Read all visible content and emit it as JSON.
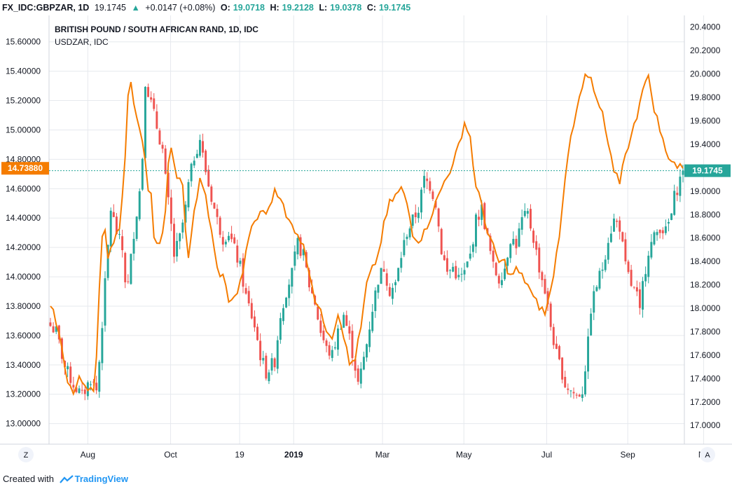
{
  "header": {
    "symbol": "FX_IDC:GBPZAR, 1D",
    "last": "19.1745",
    "change": "+0.0147 (+0.08%)",
    "o_label": "O:",
    "o": "19.0718",
    "h_label": "H:",
    "h": "19.2128",
    "l_label": "L:",
    "l": "19.0378",
    "c_label": "C:",
    "c": "19.1745"
  },
  "footer": {
    "created_with": "Created with",
    "brand": "TradingView"
  },
  "corner_left": "Z",
  "corner_right": "A",
  "colors": {
    "up": "#26a69a",
    "down": "#ef5350",
    "overlay": "#f57c00",
    "grid": "#e6e9ee",
    "price_badge_left": "#f57c00",
    "price_badge_right": "#26a69a"
  },
  "chart_data": {
    "type": "candlestick",
    "title": "BRITISH POUND / SOUTH AFRICAN RAND, 1D, IDC",
    "overlay_label": "USDZAR, IDC",
    "left_axis": {
      "ticks": [
        "15.60000",
        "15.40000",
        "15.20000",
        "15.00000",
        "14.80000",
        "14.60000",
        "14.40000",
        "14.20000",
        "14.00000",
        "13.80000",
        "13.60000",
        "13.40000",
        "13.20000",
        "13.00000"
      ],
      "range": [
        12.86,
        15.78
      ],
      "current_label": "14.73880",
      "current_value": 14.7388
    },
    "right_axis": {
      "ticks": [
        "20.4000",
        "20.2000",
        "20.0000",
        "19.8000",
        "19.6000",
        "19.4000",
        "19.2000",
        "19.0000",
        "18.8000",
        "18.6000",
        "18.4000",
        "18.2000",
        "18.0000",
        "17.8000",
        "17.6000",
        "17.4000",
        "17.2000",
        "17.0000"
      ],
      "range": [
        16.84,
        20.5
      ],
      "current_label": "19.1745",
      "current_value": 19.1745
    },
    "x_ticks": [
      "Aug",
      "Oct",
      "19",
      "2019",
      "Mar",
      "May",
      "Jul",
      "Sep",
      "No"
    ],
    "x_tick_pos": [
      13.0,
      41.8,
      65.8,
      84.6,
      115.5,
      143.8,
      172.6,
      200.8,
      227.2
    ],
    "n_bars": 221,
    "anchors": [
      [
        0,
        17.85
      ],
      [
        2,
        17.8
      ],
      [
        5,
        17.5
      ],
      [
        8,
        17.35
      ],
      [
        11,
        17.25
      ],
      [
        14,
        17.4
      ],
      [
        16,
        17.3
      ],
      [
        17,
        17.55
      ],
      [
        19,
        18.2
      ],
      [
        21,
        18.85
      ],
      [
        23,
        18.65
      ],
      [
        25,
        18.5
      ],
      [
        26,
        18.25
      ],
      [
        27,
        18.2
      ],
      [
        29,
        18.65
      ],
      [
        31,
        19.0
      ],
      [
        32,
        19.3
      ],
      [
        33,
        19.95
      ],
      [
        34,
        19.85
      ],
      [
        35,
        19.75
      ],
      [
        37,
        19.55
      ],
      [
        39,
        19.35
      ],
      [
        40,
        19.1
      ],
      [
        42,
        18.7
      ],
      [
        43,
        18.45
      ],
      [
        45,
        18.6
      ],
      [
        47,
        18.85
      ],
      [
        48,
        19.05
      ],
      [
        50,
        19.3
      ],
      [
        52,
        19.45
      ],
      [
        53,
        19.3
      ],
      [
        55,
        19.05
      ],
      [
        58,
        18.75
      ],
      [
        60,
        18.6
      ],
      [
        62,
        18.65
      ],
      [
        64,
        18.5
      ],
      [
        66,
        18.35
      ],
      [
        68,
        18.1
      ],
      [
        71,
        17.85
      ],
      [
        73,
        17.6
      ],
      [
        75,
        17.45
      ],
      [
        78,
        17.55
      ],
      [
        80,
        17.95
      ],
      [
        82,
        18.15
      ],
      [
        84,
        18.3
      ],
      [
        86,
        18.55
      ],
      [
        88,
        18.45
      ],
      [
        90,
        18.2
      ],
      [
        92,
        18.05
      ],
      [
        94,
        17.8
      ],
      [
        96,
        17.65
      ],
      [
        98,
        17.6
      ],
      [
        100,
        17.8
      ],
      [
        102,
        17.95
      ],
      [
        104,
        17.75
      ],
      [
        106,
        17.5
      ],
      [
        107,
        17.35
      ],
      [
        108,
        17.45
      ],
      [
        110,
        17.7
      ],
      [
        112,
        18.0
      ],
      [
        114,
        18.25
      ],
      [
        116,
        18.35
      ],
      [
        118,
        18.15
      ],
      [
        120,
        18.2
      ],
      [
        122,
        18.45
      ],
      [
        124,
        18.65
      ],
      [
        126,
        18.75
      ],
      [
        128,
        18.85
      ],
      [
        130,
        19.1
      ],
      [
        132,
        19.05
      ],
      [
        134,
        18.9
      ],
      [
        135,
        18.7
      ],
      [
        136,
        18.5
      ],
      [
        138,
        18.3
      ],
      [
        140,
        18.35
      ],
      [
        142,
        18.25
      ],
      [
        144,
        18.3
      ],
      [
        146,
        18.45
      ],
      [
        148,
        18.75
      ],
      [
        150,
        18.85
      ],
      [
        152,
        18.6
      ],
      [
        154,
        18.35
      ],
      [
        156,
        18.25
      ],
      [
        158,
        18.35
      ],
      [
        160,
        18.6
      ],
      [
        162,
        18.55
      ],
      [
        164,
        18.75
      ],
      [
        166,
        18.8
      ],
      [
        168,
        18.6
      ],
      [
        170,
        18.35
      ],
      [
        172,
        18.15
      ],
      [
        174,
        17.85
      ],
      [
        176,
        17.6
      ],
      [
        178,
        17.45
      ],
      [
        179,
        17.35
      ],
      [
        181,
        17.3
      ],
      [
        183,
        17.25
      ],
      [
        185,
        17.3
      ],
      [
        187,
        17.7
      ],
      [
        188,
        18.0
      ],
      [
        190,
        18.2
      ],
      [
        192,
        18.35
      ],
      [
        194,
        18.6
      ],
      [
        196,
        18.75
      ],
      [
        198,
        18.7
      ],
      [
        200,
        18.35
      ],
      [
        202,
        18.2
      ],
      [
        204,
        18.1
      ],
      [
        205,
        17.95
      ],
      [
        206,
        18.2
      ],
      [
        208,
        18.5
      ],
      [
        210,
        18.6
      ],
      [
        212,
        18.7
      ],
      [
        214,
        18.65
      ],
      [
        216,
        18.8
      ],
      [
        217,
        18.95
      ],
      [
        219,
        19.1
      ],
      [
        220,
        19.1745
      ]
    ],
    "overlay_anchors": [
      [
        0,
        13.8
      ],
      [
        2,
        13.7
      ],
      [
        4,
        13.5
      ],
      [
        6,
        13.3
      ],
      [
        8,
        13.2
      ],
      [
        10,
        13.3
      ],
      [
        13,
        13.25
      ],
      [
        15,
        13.25
      ],
      [
        16,
        13.45
      ],
      [
        17,
        13.9
      ],
      [
        18,
        14.25
      ],
      [
        19,
        14.3
      ],
      [
        20,
        14.15
      ],
      [
        22,
        14.25
      ],
      [
        24,
        14.35
      ],
      [
        26,
        14.8
      ],
      [
        27,
        15.25
      ],
      [
        28,
        15.3
      ],
      [
        30,
        15.1
      ],
      [
        32,
        14.95
      ],
      [
        34,
        14.6
      ],
      [
        35,
        14.55
      ],
      [
        36,
        14.25
      ],
      [
        38,
        14.2
      ],
      [
        40,
        14.45
      ],
      [
        41,
        14.75
      ],
      [
        42,
        14.85
      ],
      [
        44,
        14.7
      ],
      [
        46,
        14.6
      ],
      [
        47,
        14.3
      ],
      [
        48,
        14.15
      ],
      [
        50,
        14.45
      ],
      [
        52,
        14.65
      ],
      [
        54,
        14.55
      ],
      [
        56,
        14.3
      ],
      [
        58,
        14.05
      ],
      [
        60,
        14.0
      ],
      [
        62,
        13.85
      ],
      [
        64,
        13.85
      ],
      [
        66,
        13.95
      ],
      [
        68,
        14.15
      ],
      [
        70,
        14.35
      ],
      [
        72,
        14.4
      ],
      [
        74,
        14.45
      ],
      [
        76,
        14.45
      ],
      [
        78,
        14.6
      ],
      [
        80,
        14.55
      ],
      [
        82,
        14.4
      ],
      [
        84,
        14.35
      ],
      [
        86,
        14.3
      ],
      [
        88,
        14.2
      ],
      [
        90,
        14.05
      ],
      [
        92,
        13.85
      ],
      [
        94,
        13.75
      ],
      [
        96,
        13.65
      ],
      [
        98,
        13.6
      ],
      [
        100,
        13.75
      ],
      [
        101,
        13.7
      ],
      [
        104,
        13.4
      ],
      [
        106,
        13.45
      ],
      [
        108,
        13.65
      ],
      [
        110,
        13.95
      ],
      [
        112,
        14.05
      ],
      [
        114,
        14.15
      ],
      [
        116,
        14.35
      ],
      [
        118,
        14.5
      ],
      [
        120,
        14.55
      ],
      [
        122,
        14.6
      ],
      [
        124,
        14.5
      ],
      [
        126,
        14.3
      ],
      [
        128,
        14.25
      ],
      [
        130,
        14.3
      ],
      [
        132,
        14.4
      ],
      [
        134,
        14.5
      ],
      [
        136,
        14.6
      ],
      [
        138,
        14.7
      ],
      [
        140,
        14.75
      ],
      [
        142,
        14.9
      ],
      [
        144,
        15.05
      ],
      [
        146,
        14.95
      ],
      [
        148,
        14.6
      ],
      [
        150,
        14.5
      ],
      [
        152,
        14.3
      ],
      [
        154,
        14.2
      ],
      [
        156,
        14.1
      ],
      [
        158,
        14.1
      ],
      [
        160,
        14.0
      ],
      [
        162,
        14.05
      ],
      [
        164,
        14.0
      ],
      [
        166,
        13.95
      ],
      [
        168,
        13.85
      ],
      [
        170,
        13.8
      ],
      [
        172,
        13.75
      ],
      [
        174,
        13.9
      ],
      [
        176,
        14.15
      ],
      [
        178,
        14.45
      ],
      [
        180,
        14.85
      ],
      [
        182,
        15.05
      ],
      [
        184,
        15.25
      ],
      [
        186,
        15.35
      ],
      [
        188,
        15.35
      ],
      [
        189,
        15.25
      ],
      [
        190,
        15.2
      ],
      [
        192,
        15.1
      ],
      [
        194,
        14.9
      ],
      [
        196,
        14.7
      ],
      [
        198,
        14.65
      ],
      [
        200,
        14.85
      ],
      [
        202,
        14.95
      ],
      [
        204,
        15.1
      ],
      [
        206,
        15.3
      ],
      [
        208,
        15.35
      ],
      [
        210,
        15.15
      ],
      [
        212,
        15.0
      ],
      [
        214,
        14.85
      ],
      [
        216,
        14.8
      ],
      [
        218,
        14.75
      ],
      [
        220,
        14.7388
      ]
    ]
  }
}
